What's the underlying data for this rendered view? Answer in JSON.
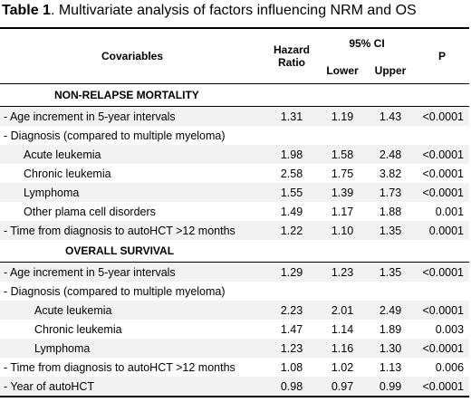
{
  "caption": {
    "label": "Table 1",
    "text": ". Multivariate analysis of factors influencing NRM and OS"
  },
  "header": {
    "covariables": "Covariables",
    "hazard_line1": "Hazard",
    "hazard_line2": "Ratio",
    "ci": "95% CI",
    "lower": "Lower",
    "upper": "Upper",
    "p": "P"
  },
  "sections": {
    "nrm": "NON-RELAPSE MORTALITY",
    "os": "OVERALL SURVIVAL"
  },
  "nrm_rows": [
    {
      "label": "- Age increment  in 5-year intervals",
      "hr": "1.31",
      "lower": "1.19",
      "upper": "1.43",
      "p": "<0.0001"
    },
    {
      "label": "- Diagnosis (compared to multiple myeloma)",
      "hr": "",
      "lower": "",
      "upper": "",
      "p": ""
    },
    {
      "label": "Acute leukemia",
      "hr": "1.98",
      "lower": "1.58",
      "upper": "2.48",
      "p": "<0.0001"
    },
    {
      "label": "Chronic leukemia",
      "hr": "2.58",
      "lower": "1.75",
      "upper": "3.82",
      "p": "<0.0001"
    },
    {
      "label": "Lymphoma",
      "hr": "1.55",
      "lower": "1.39",
      "upper": "1.73",
      "p": "<0.0001"
    },
    {
      "label": "Other plama cell disorders",
      "hr": "1.49",
      "lower": "1.17",
      "upper": "1.88",
      "p": "0.001"
    },
    {
      "label": "- Time from diagnosis to autoHCT >12 months",
      "hr": "1.22",
      "lower": "1.10",
      "upper": "1.35",
      "p": "0.0001"
    }
  ],
  "os_rows": [
    {
      "label": "- Age increment  in 5-year intervals",
      "hr": "1.29",
      "lower": "1.23",
      "upper": "1.35",
      "p": "<0.0001"
    },
    {
      "label": "- Diagnosis (compared to multiple myeloma)",
      "hr": "",
      "lower": "",
      "upper": "",
      "p": ""
    },
    {
      "label": "Acute leukemia",
      "hr": "2.23",
      "lower": "2.01",
      "upper": "2.49",
      "p": "<0.0001"
    },
    {
      "label": "Chronic leukemia",
      "hr": "1.47",
      "lower": "1.14",
      "upper": "1.89",
      "p": "0.003"
    },
    {
      "label": "Lymphoma",
      "hr": "1.23",
      "lower": "1.16",
      "upper": "1.30",
      "p": "<0.0001"
    },
    {
      "label": "- Time from diagnosis to autoHCT >12 months",
      "hr": "1.08",
      "lower": "1.02",
      "upper": "1.13",
      "p": "0.006"
    },
    {
      "label": "- Year of autoHCT",
      "hr": "0.98",
      "lower": "0.97",
      "upper": "0.99",
      "p": "<0.0001"
    }
  ],
  "colors": {
    "shade": "#f2f2f2",
    "rule": "#000000"
  }
}
